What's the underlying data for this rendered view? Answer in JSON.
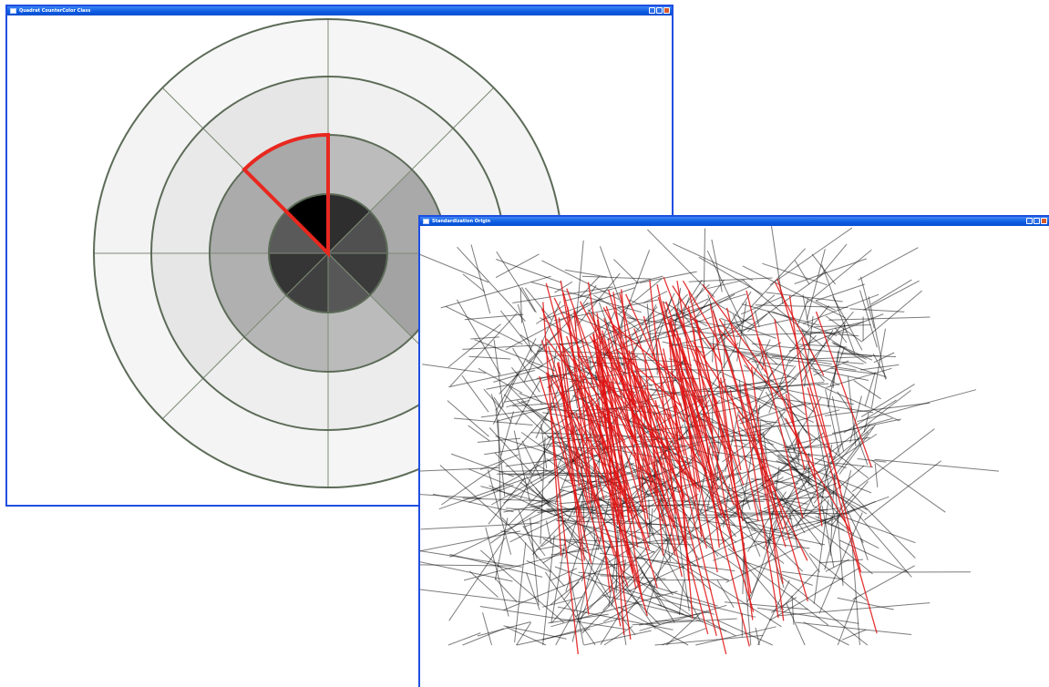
{
  "windows": {
    "radial": {
      "title": "Quadrat CounterColor Class",
      "ring_fill_colors": [
        "#000000",
        "#2c2c2c",
        "#404040",
        "#555555",
        "#b4b4b4",
        "#a6a6a6",
        "#e6e6e6",
        "#eeeeee",
        "#f4f4f4"
      ],
      "ring_stroke_color": "#5c6b57",
      "highlight_color": "#e8281f",
      "rings": [
        {
          "name": "center",
          "sectors": [
            {
              "label": "N-NE",
              "color": "#2e2e2e"
            },
            {
              "label": "NE-E",
              "color": "#505050"
            },
            {
              "label": "E-SE",
              "color": "#3b3b3b"
            },
            {
              "label": "SE-S",
              "color": "#575757"
            },
            {
              "label": "S-SW",
              "color": "#404040"
            },
            {
              "label": "SW-W",
              "color": "#353535"
            },
            {
              "label": "W-NW",
              "color": "#5a5a5a"
            },
            {
              "label": "NW-N",
              "color": "#000000"
            }
          ]
        },
        {
          "name": "ring-2",
          "sectors": [
            {
              "label": "N-NE",
              "color": "#bcbcbc"
            },
            {
              "label": "NE-E",
              "color": "#a9a9a9"
            },
            {
              "label": "E-SE",
              "color": "#a3a3a3"
            },
            {
              "label": "SE-S",
              "color": "#bbbbbb"
            },
            {
              "label": "S-SW",
              "color": "#b6b6b6"
            },
            {
              "label": "SW-W",
              "color": "#b0b0b0"
            },
            {
              "label": "W-NW",
              "color": "#ababab"
            },
            {
              "label": "NW-N",
              "color": "#a9a9a9"
            }
          ]
        },
        {
          "name": "ring-3",
          "sectors": [
            {
              "label": "N-NE",
              "color": "#f0f0f0"
            },
            {
              "label": "NE-E",
              "color": "#f2f2f2"
            },
            {
              "label": "E-SE",
              "color": "#eaeaea"
            },
            {
              "label": "SE-S",
              "color": "#ececec"
            },
            {
              "label": "S-SW",
              "color": "#eeeeee"
            },
            {
              "label": "SW-W",
              "color": "#e6e6e6"
            },
            {
              "label": "W-NW",
              "color": "#e9e9e9"
            },
            {
              "label": "NW-N",
              "color": "#e6e6e6"
            }
          ]
        },
        {
          "name": "outer",
          "sectors": [
            {
              "label": "N-NE",
              "color": "#f5f5f5"
            },
            {
              "label": "NE-E",
              "color": "#f4f4f4"
            },
            {
              "label": "E-SE",
              "color": "#f6f6f6"
            },
            {
              "label": "SE-S",
              "color": "#f5f5f5"
            },
            {
              "label": "S-SW",
              "color": "#f4f4f4"
            },
            {
              "label": "SW-W",
              "color": "#f5f5f5"
            },
            {
              "label": "W-NW",
              "color": "#f3f3f3"
            },
            {
              "label": "NW-N",
              "color": "#f6f6f6"
            }
          ]
        }
      ],
      "highlighted": {
        "ring": "ring-2",
        "sector": "NW-N"
      }
    },
    "lines": {
      "title": "Standardization Origin",
      "line_colors": {
        "primary": "#111111",
        "accent": "#e01010"
      }
    }
  }
}
